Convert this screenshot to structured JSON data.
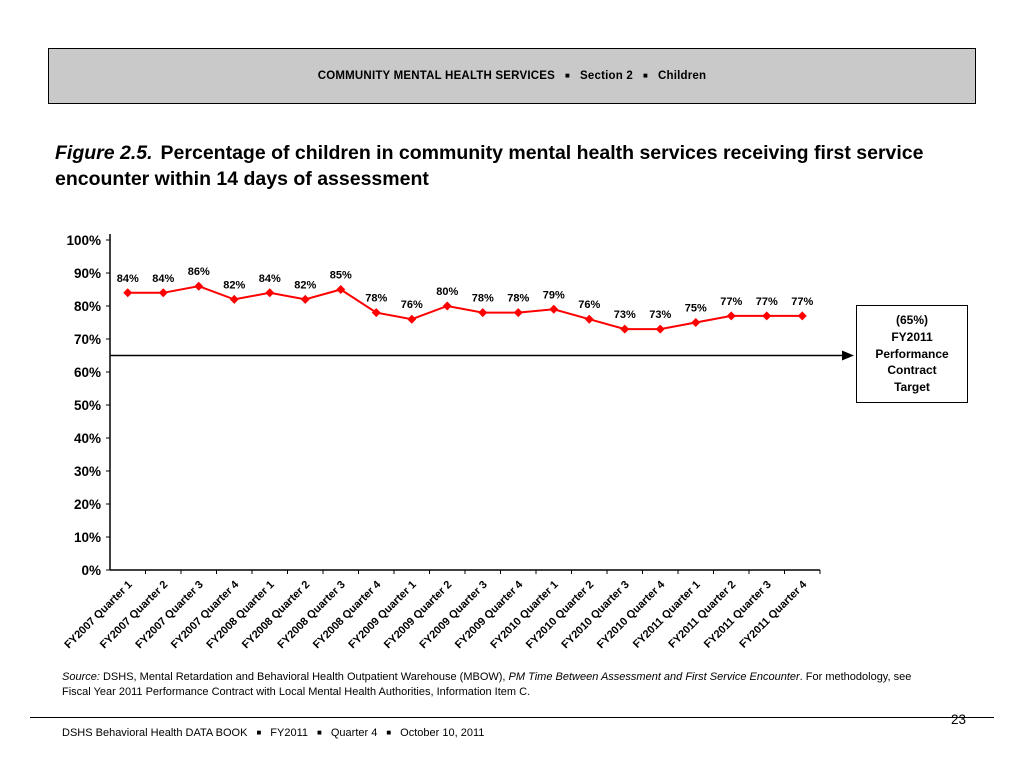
{
  "colors": {
    "series": "#FF0000",
    "header_bg": "#C9C9C9",
    "axis": "#000000"
  },
  "header": {
    "bullet": "■",
    "parts": [
      "COMMUNITY MENTAL HEALTH SERVICES",
      "Section 2",
      "Children"
    ]
  },
  "figure": {
    "label": "Figure 2.5.",
    "title": "Percentage of children in community mental health services receiving first service encounter within 14 days of assessment"
  },
  "chart_data": {
    "type": "line",
    "title": "Percentage of children in community mental health services receiving first service encounter within 14 days of assessment",
    "categories": [
      "FY2007 Quarter 1",
      "FY2007 Quarter 2",
      "FY2007 Quarter 3",
      "FY2007 Quarter 4",
      "FY2008 Quarter 1",
      "FY2008 Quarter 2",
      "FY2008 Quarter 3",
      "FY2008 Quarter 4",
      "FY2009 Quarter 1",
      "FY2009 Quarter 2",
      "FY2009 Quarter 3",
      "FY2009 Quarter 4",
      "FY2010 Quarter 1",
      "FY2010 Quarter 2",
      "FY2010 Quarter 3",
      "FY2010 Quarter 4",
      "FY2011 Quarter 1",
      "FY2011 Quarter 2",
      "FY2011 Quarter 3",
      "FY2011 Quarter 4"
    ],
    "values": [
      84,
      84,
      86,
      82,
      84,
      82,
      85,
      78,
      76,
      80,
      78,
      78,
      79,
      76,
      73,
      73,
      75,
      77,
      77,
      77
    ],
    "series_color": "#FF0000",
    "xlabel": "",
    "ylabel": "",
    "ylim": [
      0,
      100
    ],
    "ytick_step": 10,
    "ytick_suffix": "%",
    "data_label_suffix": "%",
    "grid": false,
    "legend": "none",
    "target": {
      "value": 65,
      "label_lines": [
        "(65%)",
        "FY2011",
        "Performance",
        "Contract",
        "Target"
      ]
    }
  },
  "source": {
    "segments": [
      "Source:",
      " DSHS, Mental Retardation and Behavioral Health Outpatient Warehouse (MBOW), ",
      "PM Time Between Assessment and First Service Encounter",
      ". For methodology, see Fiscal Year 2011 Performance Contract with Local Mental Health Authorities, Information Item C."
    ]
  },
  "footer": {
    "bullet": "■",
    "parts": [
      "DSHS Behavioral Health DATA BOOK",
      "FY2011",
      "Quarter 4",
      "October 10, 2011"
    ],
    "page_number": "23"
  }
}
